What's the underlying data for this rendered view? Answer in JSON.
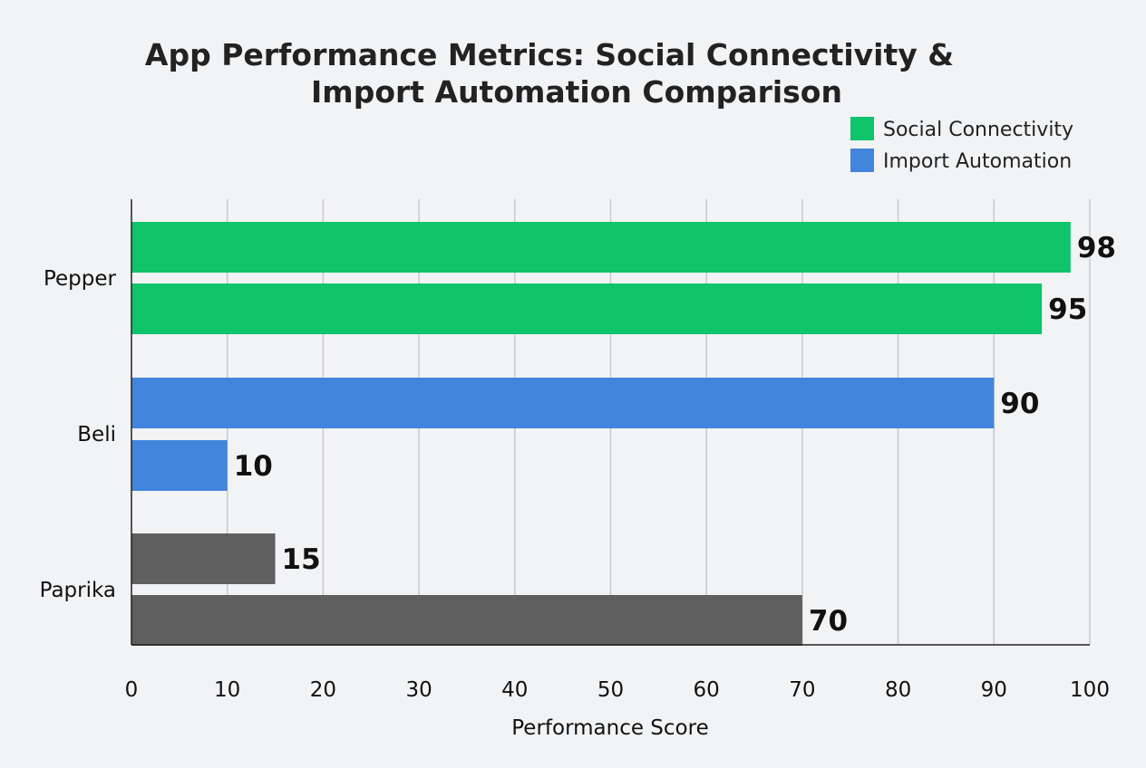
{
  "chart_data": {
    "type": "bar",
    "orientation": "horizontal",
    "title_lines": [
      "App Performance Metrics: Social Connectivity &",
      "Import Automation Comparison"
    ],
    "xlabel": "Performance Score",
    "ylabel": "",
    "xlim": [
      0,
      100
    ],
    "x_ticks": [
      0,
      10,
      20,
      30,
      40,
      50,
      60,
      70,
      80,
      90,
      100
    ],
    "grid": true,
    "legend": {
      "placement": "top-right",
      "entries": [
        {
          "label": "Social Connectivity",
          "color": "#10c46c"
        },
        {
          "label": "Import Automation",
          "color": "#4285dc"
        }
      ]
    },
    "categories": [
      "Pepper",
      "Beli",
      "Paprika"
    ],
    "bars": [
      {
        "category": "Pepper",
        "value": 98,
        "color": "#10c46c"
      },
      {
        "category": "Pepper",
        "value": 95,
        "color": "#10c46c"
      },
      {
        "category": "Beli",
        "value": 90,
        "color": "#4285dc"
      },
      {
        "category": "Beli",
        "value": 10,
        "color": "#4285dc"
      },
      {
        "category": "Paprika",
        "value": 15,
        "color": "#5f5f5f"
      },
      {
        "category": "Paprika",
        "value": 70,
        "color": "#5f5f5f"
      }
    ]
  }
}
